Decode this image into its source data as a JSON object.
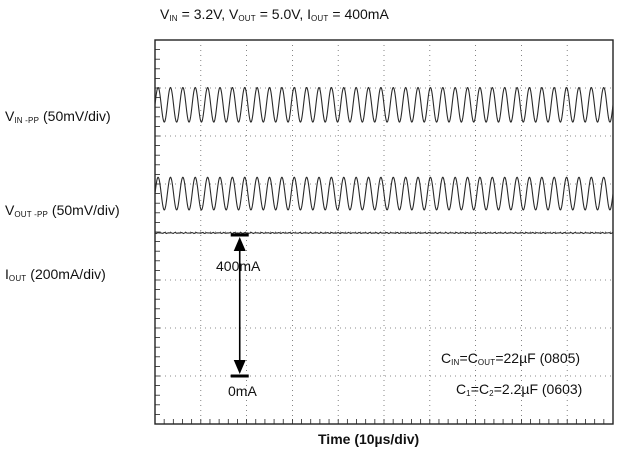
{
  "chart_data": {
    "type": "line",
    "title": {
      "parts": [
        {
          "t": "V"
        },
        {
          "sub": "IN"
        },
        {
          "t": " = 3.2V, V"
        },
        {
          "sub": "OUT"
        },
        {
          "t": " = 5.0V, I"
        },
        {
          "sub": "OUT"
        },
        {
          "t": " = 400mA"
        }
      ]
    },
    "xlabel": "Time (10µs/div)",
    "x_divisions": 10,
    "y_divisions": 8,
    "grid": true,
    "series": [
      {
        "name": {
          "parts": [
            {
              "t": "V"
            },
            {
              "sub": "IN -PP"
            },
            {
              "t": " (50mV/div)"
            }
          ]
        },
        "waveform": "sine",
        "cycles_per_div": 3.7,
        "amplitude_divs": 0.36,
        "baseline_div": 6.65,
        "color": "#2a2a2a"
      },
      {
        "name": {
          "parts": [
            {
              "t": "V"
            },
            {
              "sub": "OUT -PP"
            },
            {
              "t": " (50mV/div)"
            }
          ]
        },
        "waveform": "sine",
        "cycles_per_div": 3.7,
        "amplitude_divs": 0.34,
        "baseline_div": 4.8,
        "color": "#2a2a2a"
      },
      {
        "name": {
          "parts": [
            {
              "t": "I"
            },
            {
              "sub": "OUT"
            },
            {
              "t": " (200mA/div)"
            }
          ]
        },
        "waveform": "dc",
        "baseline_div": 3.98,
        "color": "#2a2a2a"
      }
    ],
    "annotations": [
      {
        "text": "400mA",
        "position": "above-trace"
      },
      {
        "text": "0mA",
        "position": "below-arrow"
      },
      {
        "parts": [
          {
            "t": "C"
          },
          {
            "sub": "IN"
          },
          {
            "t": "=C"
          },
          {
            "sub": "OUT"
          },
          {
            "t": "=22µF (0805)"
          }
        ]
      },
      {
        "parts": [
          {
            "t": "C"
          },
          {
            "sub": "1"
          },
          {
            "t": "=C"
          },
          {
            "sub": "2"
          },
          {
            "t": "=2.2µF (0603)"
          }
        ]
      }
    ]
  }
}
